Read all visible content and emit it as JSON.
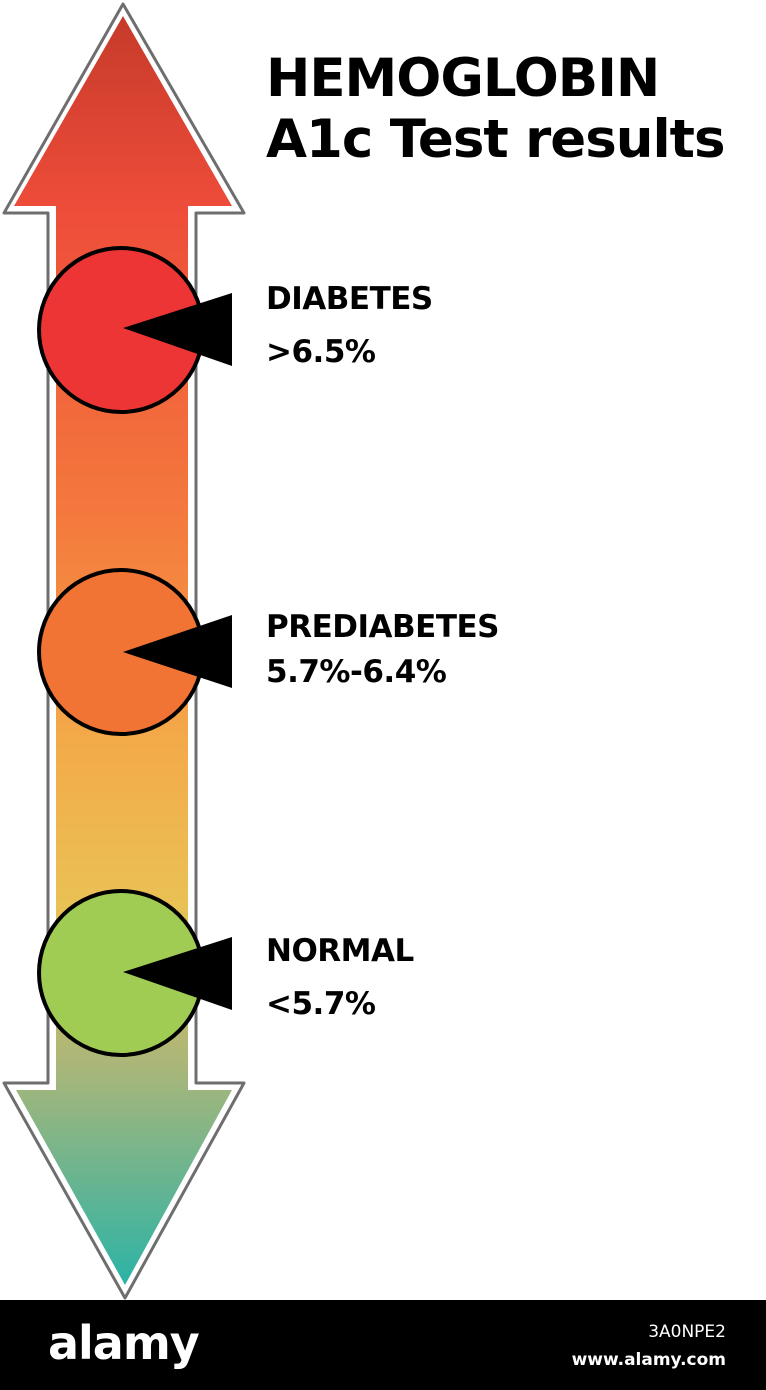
{
  "title": {
    "line1": "HEMOGLOBIN",
    "line2": "A1c Test results"
  },
  "levels": [
    {
      "name": "DIABETES",
      "range": ">6.5%",
      "color": "#ee3535"
    },
    {
      "name": "PREDIABETES",
      "range": "5.7%-6.4%",
      "color": "#f27434"
    },
    {
      "name": "NORMAL",
      "range": "<5.7%",
      "color": "#a1cc54"
    }
  ],
  "arrow": {
    "gradient": [
      "#c63a2a",
      "#ee4c3a",
      "#f47a3d",
      "#f3aa49",
      "#eac155",
      "#a8b67a",
      "#2cb3a6"
    ]
  },
  "footer": {
    "brand": "alamy",
    "image_id": "3A0NPE2",
    "site": "www.alamy.com"
  }
}
